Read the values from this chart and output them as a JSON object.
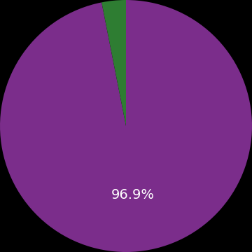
{
  "slices": [
    96.9,
    3.1
  ],
  "colors": [
    "#7B2D8B",
    "#2E7D32"
  ],
  "label_text": "96.9%",
  "label_color": "#ffffff",
  "label_fontsize": 14,
  "background_color": "#000000",
  "startangle": 90,
  "figsize": [
    3.6,
    3.6
  ],
  "dpi": 100
}
